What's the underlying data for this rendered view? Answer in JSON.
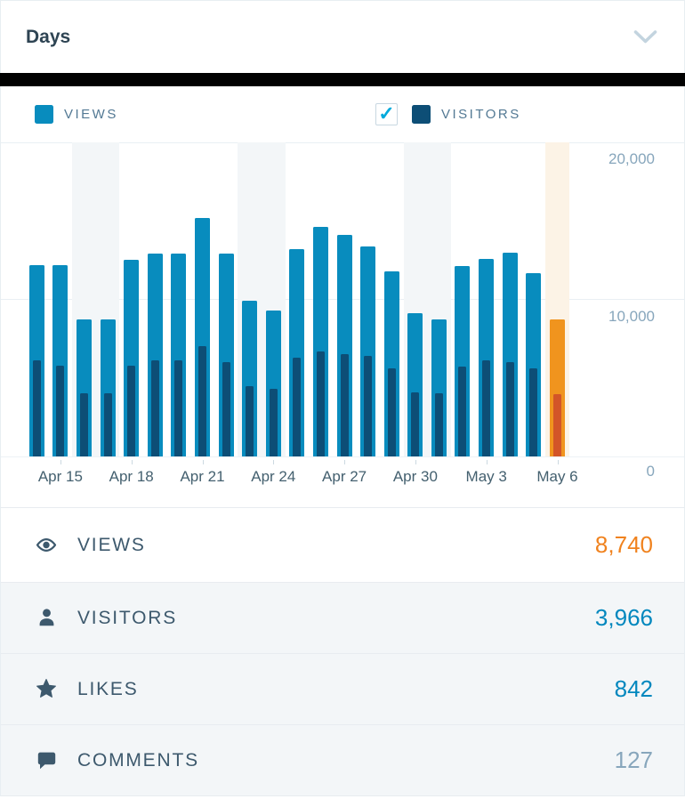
{
  "colors": {
    "views_blue": "#088cbe",
    "visitors_navy": "#0d4e76",
    "selected_views_orange": "#f0941e",
    "selected_visitors_orange": "#d35528",
    "weekend_band": "#f3f6f8",
    "selected_band": "#fcf3e6",
    "value_orange": "#f0821e",
    "value_blue": "#0087be",
    "value_gray": "#87a6bc",
    "text_dark": "#2e4453",
    "text_slate": "#3d596d",
    "legend_text": "#537994",
    "axis_label": "#87a6bc",
    "row_gray": "#f3f6f8",
    "check_cyan": "#00aadc"
  },
  "header": {
    "title": "Days"
  },
  "legend": {
    "views_label": "VIEWS",
    "visitors_label": "VISITORS",
    "visitors_checkbox_checked": "✓"
  },
  "chart_data": {
    "type": "bar",
    "title": "",
    "xlabel": "",
    "ylabel": "",
    "ylim": [
      0,
      20000
    ],
    "grid": true,
    "legend_position": "top",
    "x": [
      "Apr 14",
      "Apr 15",
      "Apr 16",
      "Apr 17",
      "Apr 18",
      "Apr 19",
      "Apr 20",
      "Apr 21",
      "Apr 22",
      "Apr 23",
      "Apr 24",
      "Apr 25",
      "Apr 26",
      "Apr 27",
      "Apr 28",
      "Apr 29",
      "Apr 30",
      "May 1",
      "May 2",
      "May 3",
      "May 4",
      "May 5",
      "May 6"
    ],
    "series": [
      {
        "name": "Views",
        "values": [
          12200,
          12200,
          8700,
          8700,
          12500,
          12900,
          12900,
          15200,
          12900,
          9900,
          9300,
          13200,
          14600,
          14100,
          13400,
          11800,
          9100,
          8700,
          12100,
          12600,
          13000,
          11700,
          8740
        ]
      },
      {
        "name": "Visitors",
        "values": [
          6100,
          5800,
          4000,
          4000,
          5800,
          6100,
          6100,
          7000,
          6000,
          4500,
          4300,
          6300,
          6700,
          6500,
          6400,
          5600,
          4100,
          4000,
          5700,
          6100,
          6000,
          5600,
          3966
        ]
      }
    ],
    "tick_labels": [
      "Apr 15",
      "Apr 18",
      "Apr 21",
      "Apr 24",
      "Apr 27",
      "Apr 30",
      "May 3",
      "May 6"
    ],
    "ytick_labels": [
      "20,000",
      "10,000",
      "0"
    ],
    "weekend_indices": [
      2,
      3,
      9,
      10,
      16,
      17
    ],
    "selected_index": 22
  },
  "summary": {
    "rows": [
      {
        "icon": "eye-icon",
        "label": "VIEWS",
        "value": "8,740",
        "value_color": "#f0821e"
      },
      {
        "icon": "person-icon",
        "label": "VISITORS",
        "value": "3,966",
        "value_color": "#0087be"
      },
      {
        "icon": "star-icon",
        "label": "LIKES",
        "value": "842",
        "value_color": "#0087be"
      },
      {
        "icon": "comment-icon",
        "label": "COMMENTS",
        "value": "127",
        "value_color": "#87a6bc"
      }
    ]
  }
}
